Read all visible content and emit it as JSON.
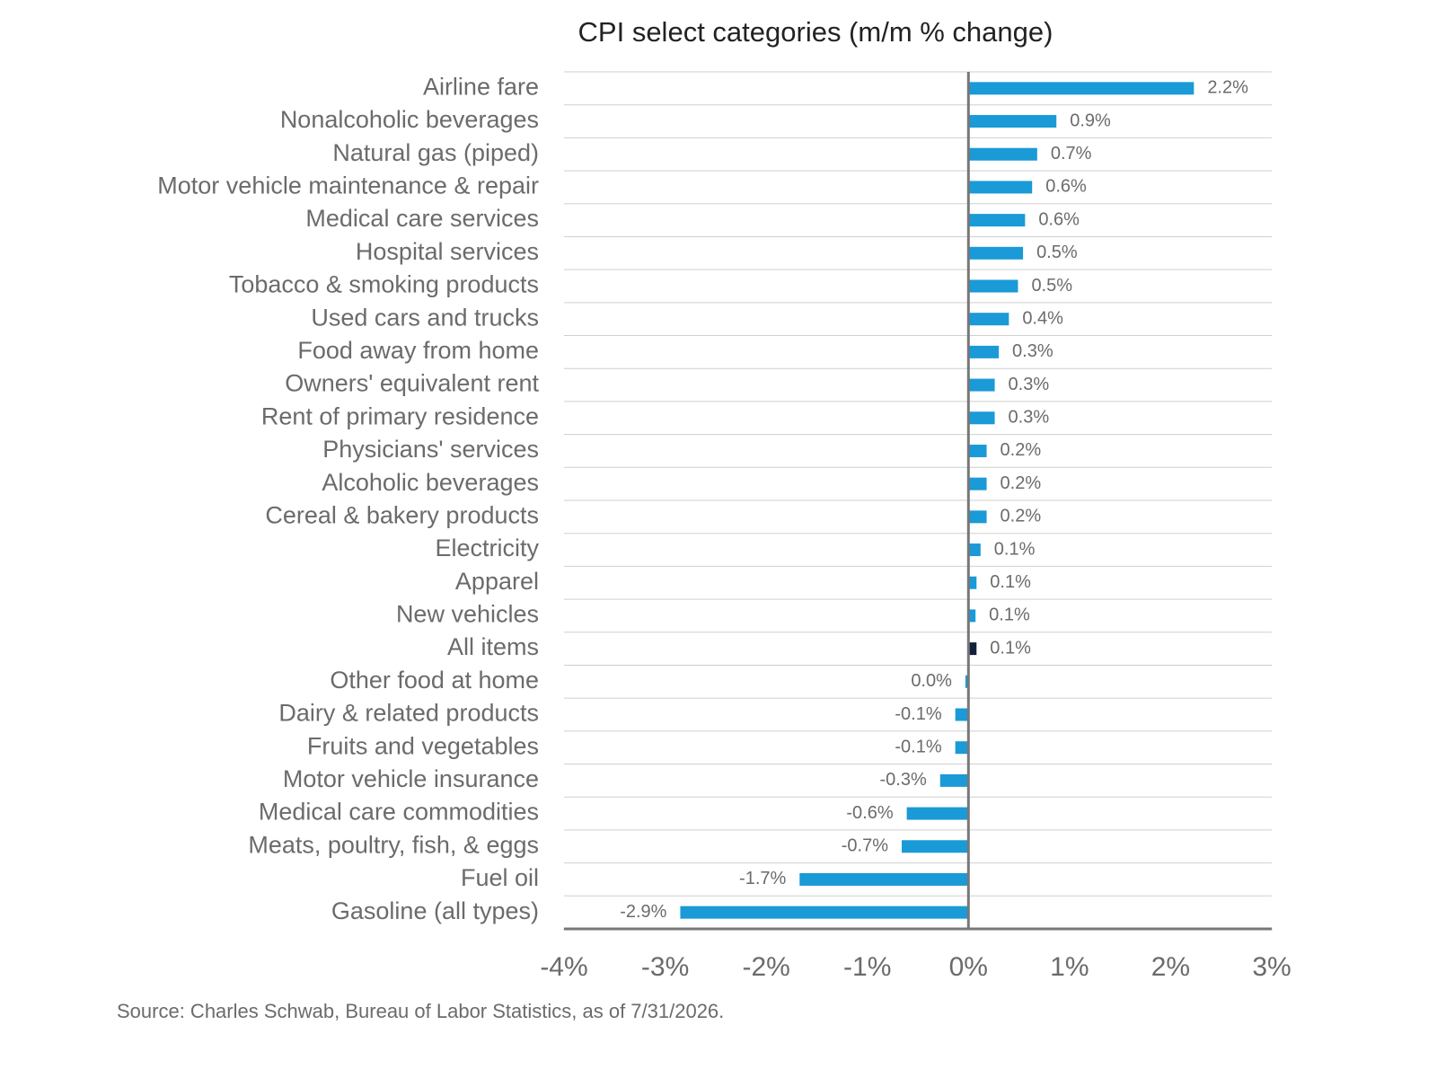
{
  "chart_data": {
    "type": "hbar",
    "title": "CPI select categories (m/m % change)",
    "source": "Source: Charles Schwab, Bureau of Labor Statistics, as of  7/31/2026.",
    "categories": [
      "Airline fare",
      "Nonalcoholic beverages",
      "Natural gas (piped)",
      "Motor vehicle maintenance & repair",
      "Medical care services",
      "Hospital services",
      "Tobacco & smoking products",
      "Used cars and trucks",
      "Food away from home",
      "Owners' equivalent rent",
      "Rent of primary residence",
      "Physicians' services",
      "Alcoholic beverages",
      "Cereal & bakery products",
      "Electricity",
      "Apparel",
      "New vehicles",
      "All items",
      "Other food at home",
      "Dairy & related products",
      "Fruits and vegetables",
      "Motor vehicle insurance",
      "Medical care commodities",
      "Meats, poultry, fish, & eggs",
      "Fuel oil",
      "Gasoline (all types)"
    ],
    "values": [
      2.23,
      0.87,
      0.68,
      0.63,
      0.56,
      0.54,
      0.49,
      0.4,
      0.3,
      0.26,
      0.26,
      0.18,
      0.18,
      0.18,
      0.12,
      0.08,
      0.07,
      0.08,
      -0.03,
      -0.13,
      -0.13,
      -0.28,
      -0.61,
      -0.66,
      -1.67,
      -2.85
    ],
    "value_labels": [
      "2.2%",
      "0.9%",
      "0.7%",
      "0.6%",
      "0.6%",
      "0.5%",
      "0.5%",
      "0.4%",
      "0.3%",
      "0.3%",
      "0.3%",
      "0.2%",
      "0.2%",
      "0.2%",
      "0.1%",
      "0.1%",
      "0.1%",
      "0.1%",
      "0.0%",
      "-0.1%",
      "-0.1%",
      "-0.3%",
      "-0.6%",
      "-0.7%",
      "-1.7%",
      "-2.9%"
    ],
    "colors": [
      "#1a9ad6",
      "#1a9ad6",
      "#1a9ad6",
      "#1a9ad6",
      "#1a9ad6",
      "#1a9ad6",
      "#1a9ad6",
      "#1a9ad6",
      "#1a9ad6",
      "#1a9ad6",
      "#1a9ad6",
      "#1a9ad6",
      "#1a9ad6",
      "#1a9ad6",
      "#1a9ad6",
      "#1a9ad6",
      "#1a9ad6",
      "#14213d",
      "#1a9ad6",
      "#1a9ad6",
      "#1a9ad6",
      "#1a9ad6",
      "#1a9ad6",
      "#1a9ad6",
      "#1a9ad6",
      "#1a9ad6"
    ],
    "xlim": [
      -4,
      3
    ],
    "xticks": [
      {
        "value": -4,
        "label": "-4%"
      },
      {
        "value": -3,
        "label": "-3%"
      },
      {
        "value": -2,
        "label": "-2%"
      },
      {
        "value": -1,
        "label": "-1%"
      },
      {
        "value": 0,
        "label": "0%"
      },
      {
        "value": 1,
        "label": "1%"
      },
      {
        "value": 2,
        "label": "2%"
      },
      {
        "value": 3,
        "label": "3%"
      }
    ],
    "grid": true
  }
}
